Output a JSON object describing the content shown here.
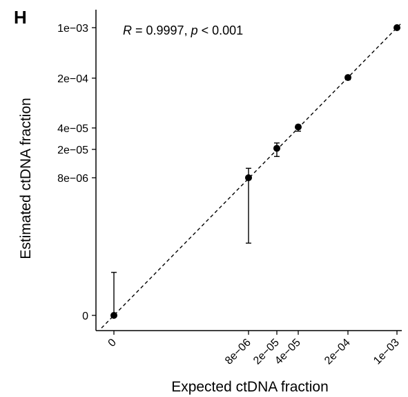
{
  "panel_label": "H",
  "chart_data": {
    "type": "scatter",
    "xlabel": "Expected ctDNA fraction",
    "ylabel": "Estimated ctDNA fraction",
    "x_ticks": [
      "0",
      "8e−06",
      "2e−05",
      "4e−05",
      "2e−04",
      "1e−03"
    ],
    "y_ticks": [
      "0",
      "8e−06",
      "2e−05",
      "4e−05",
      "2e−04",
      "1e−03"
    ],
    "points": [
      {
        "x": 0,
        "y": 0,
        "y_low": 0,
        "y_high": 2.5e-06
      },
      {
        "x": 8e-06,
        "y": 8e-06,
        "y_low": 4.2e-06,
        "y_high": 1.2e-05
      },
      {
        "x": 2e-05,
        "y": 2.1e-05,
        "y_low": 1.7e-05,
        "y_high": 2.6e-05
      },
      {
        "x": 4e-05,
        "y": 4.3e-05,
        "y_low": 3.7e-05,
        "y_high": 4.9e-05
      },
      {
        "x": 0.0002,
        "y": 0.00021,
        "y_low": 0.000195,
        "y_high": 0.000225
      },
      {
        "x": 0.001,
        "y": 0.001,
        "y_low": 0.00098,
        "y_high": 0.00102
      }
    ],
    "reference_line": "y = x (dashed)",
    "annotation": {
      "r_symbol": "R",
      "r_value": " = 0.9997, ",
      "p_symbol": "p",
      "p_value": " < 0.001"
    },
    "grid": false,
    "legend": "none"
  }
}
